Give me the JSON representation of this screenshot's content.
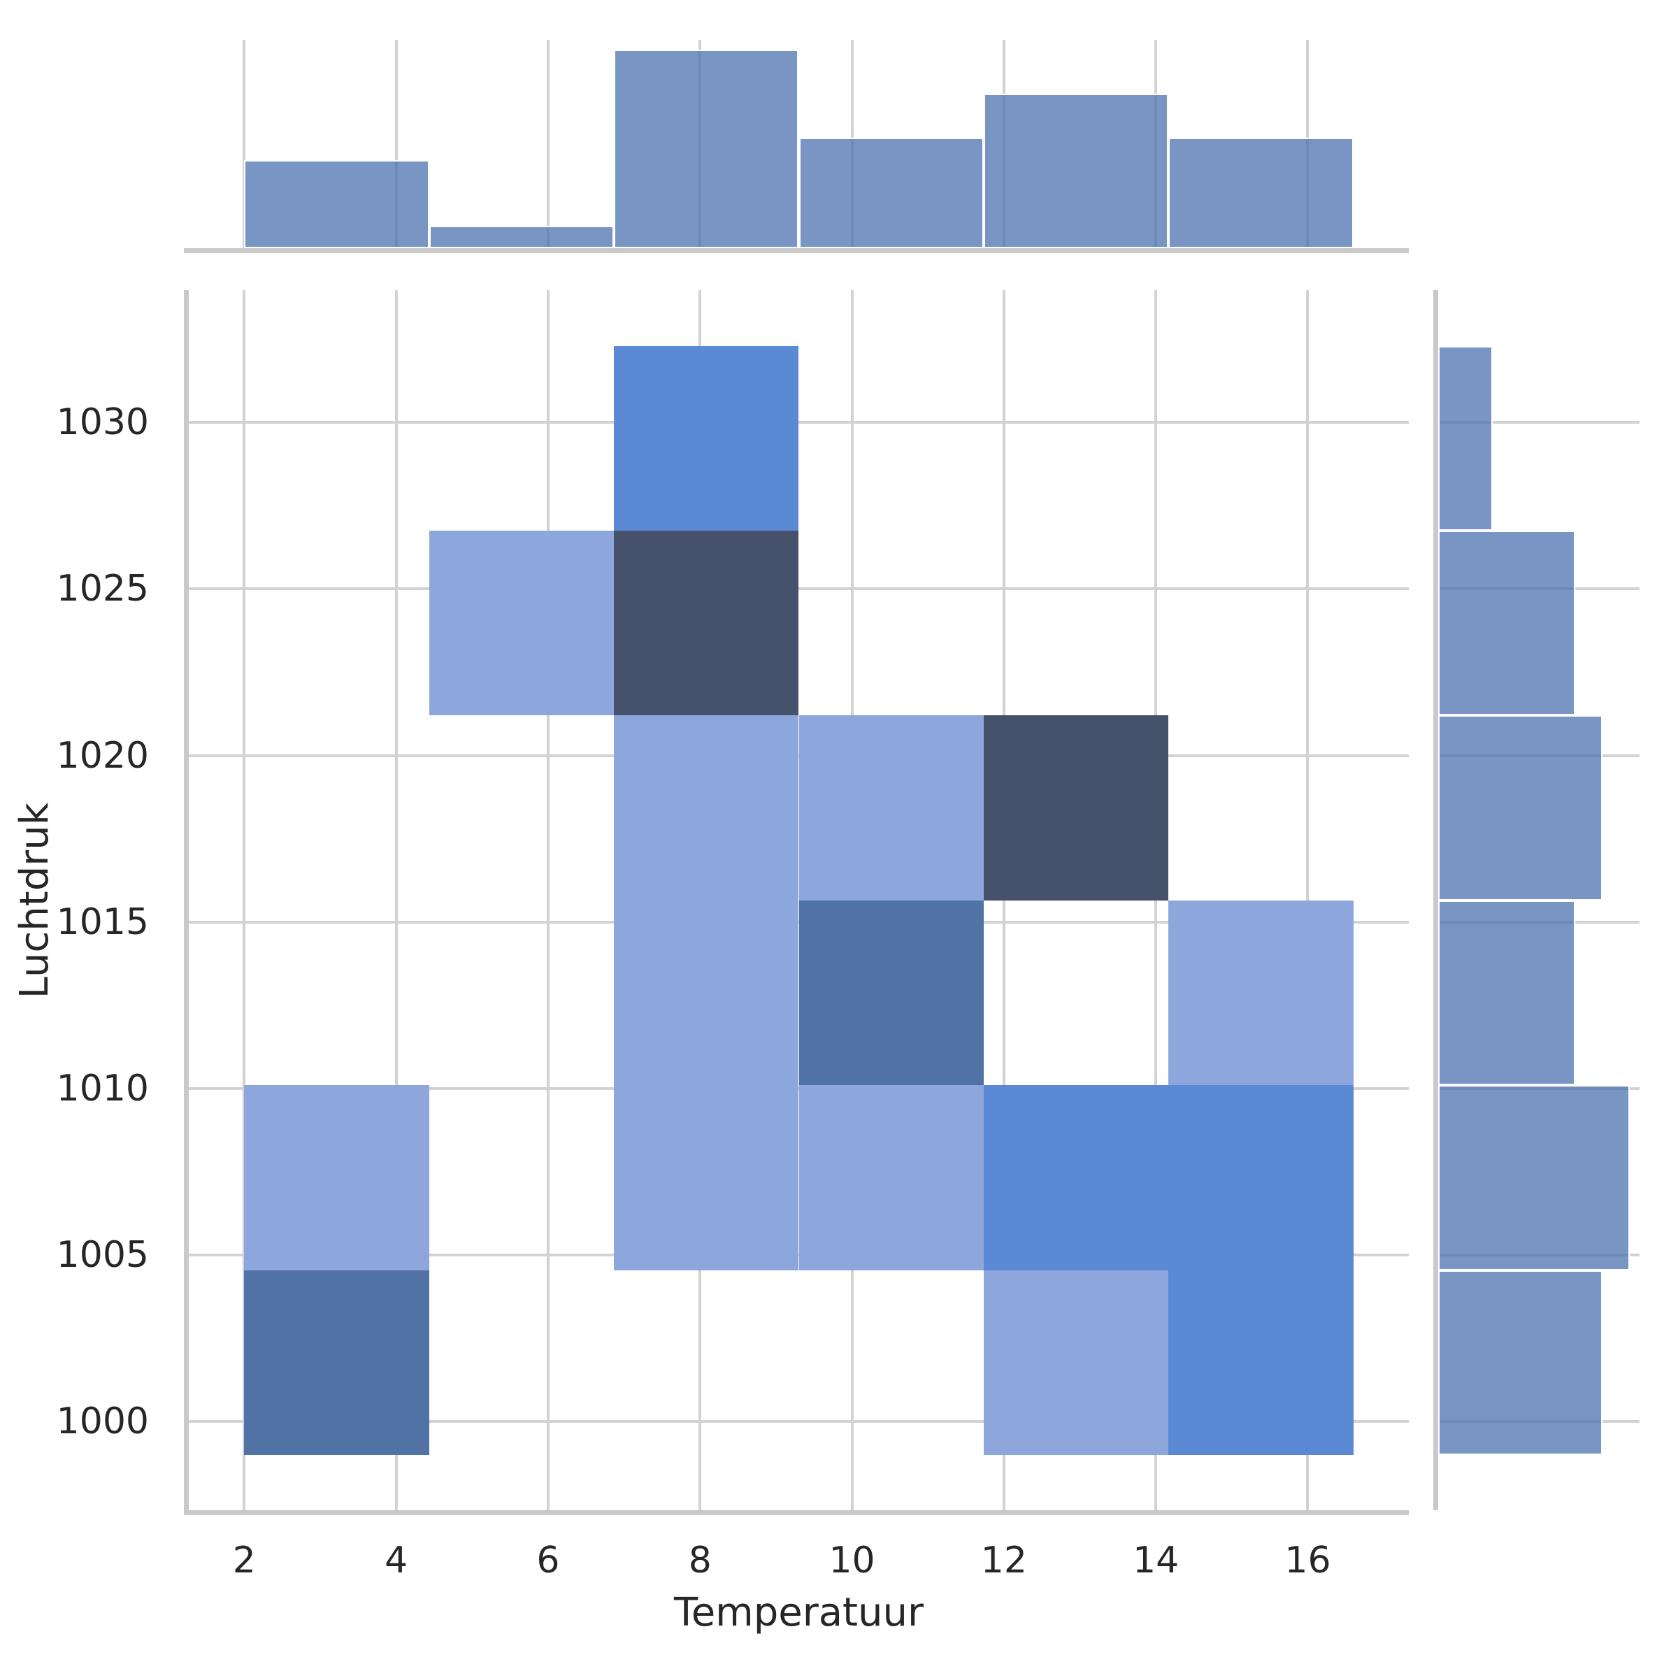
{
  "figure": {
    "background": "#ffffff"
  },
  "labels": {
    "xlabel": "Temperatuur",
    "ylabel": "Luchtdruk"
  },
  "style": {
    "grid_color": "#d2d2d2",
    "spine_color": "#c9c9c9",
    "text_color": "#262626",
    "marginal_bar_fill_rgba": "rgba(76,114,176,0.75)",
    "marginal_bar_edge": "#ffffff",
    "count_colors": {
      "1": "#8da7dd",
      "2": "#5b89d4",
      "3": "#5072a4",
      "4": "#46516b"
    }
  },
  "chart_data": {
    "type": "heatmap",
    "kind": "joint-2d-histogram-with-marginals",
    "title": "",
    "xlabel": "Temperatuur",
    "ylabel": "Luchtdruk",
    "x_ticks": [
      2,
      4,
      6,
      8,
      10,
      12,
      14,
      16
    ],
    "y_ticks": [
      1000,
      1005,
      1010,
      1015,
      1020,
      1025,
      1030
    ],
    "xlim": [
      1.27,
      17.33
    ],
    "ylim": [
      997.34,
      1033.97
    ],
    "grid": true,
    "x_bin_edges": [
      2.0,
      4.433,
      6.867,
      9.3,
      11.733,
      14.167,
      16.6
    ],
    "y_bin_edges": [
      999.0,
      1004.55,
      1010.1,
      1015.65,
      1021.2,
      1026.75,
      1032.3
    ],
    "cells": [
      {
        "x_bin": 0,
        "y_bin": 0,
        "count": 3
      },
      {
        "x_bin": 0,
        "y_bin": 1,
        "count": 1
      },
      {
        "x_bin": 1,
        "y_bin": 4,
        "count": 1
      },
      {
        "x_bin": 2,
        "y_bin": 1,
        "count": 1
      },
      {
        "x_bin": 2,
        "y_bin": 2,
        "count": 1
      },
      {
        "x_bin": 2,
        "y_bin": 3,
        "count": 1
      },
      {
        "x_bin": 2,
        "y_bin": 4,
        "count": 4
      },
      {
        "x_bin": 2,
        "y_bin": 5,
        "count": 2
      },
      {
        "x_bin": 3,
        "y_bin": 1,
        "count": 1
      },
      {
        "x_bin": 3,
        "y_bin": 2,
        "count": 3
      },
      {
        "x_bin": 3,
        "y_bin": 3,
        "count": 1
      },
      {
        "x_bin": 4,
        "y_bin": 0,
        "count": 1
      },
      {
        "x_bin": 4,
        "y_bin": 1,
        "count": 2
      },
      {
        "x_bin": 4,
        "y_bin": 3,
        "count": 4
      },
      {
        "x_bin": 5,
        "y_bin": 0,
        "count": 2
      },
      {
        "x_bin": 5,
        "y_bin": 1,
        "count": 2
      },
      {
        "x_bin": 5,
        "y_bin": 2,
        "count": 1
      }
    ],
    "marginal_x": {
      "counts": [
        4,
        1,
        9,
        5,
        7,
        5
      ],
      "axis_max": 9.45
    },
    "marginal_y": {
      "counts_bottom_to_top": [
        6,
        7,
        5,
        6,
        5,
        2
      ],
      "axis_max": 7.35
    }
  }
}
